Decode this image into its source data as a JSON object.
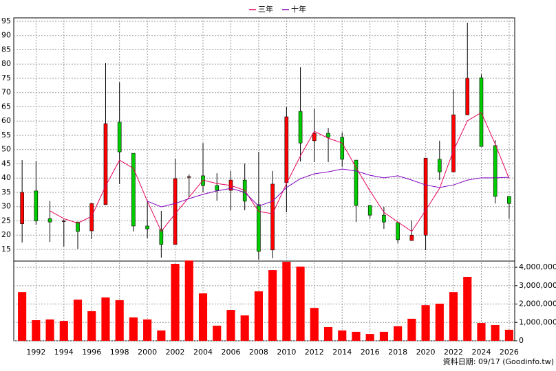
{
  "chart_data": {
    "type": "candlestick",
    "x": [
      1991,
      1992,
      1993,
      1994,
      1995,
      1996,
      1997,
      1998,
      1999,
      2000,
      2001,
      2002,
      2003,
      2004,
      2005,
      2006,
      2007,
      2008,
      2009,
      2010,
      2011,
      2012,
      2013,
      2014,
      2015,
      2016,
      2017,
      2018,
      2019,
      2020,
      2021,
      2022,
      2023,
      2024,
      2025,
      2026
    ],
    "xlim": [
      1990.4,
      2026.4
    ],
    "xticks": [
      1992,
      1994,
      1996,
      1998,
      2000,
      2002,
      2004,
      2006,
      2008,
      2010,
      2012,
      2014,
      2016,
      2018,
      2020,
      2022,
      2024,
      2026
    ],
    "ylim": [
      10.9,
      96.2
    ],
    "yticks": [
      15,
      20,
      25,
      30,
      35,
      40,
      45,
      50,
      55,
      60,
      65,
      70,
      75,
      80,
      85,
      90,
      95
    ],
    "open": [
      24,
      35.5,
      25.8,
      25,
      24.6,
      21.5,
      30.7,
      59.6,
      48.7,
      23.2,
      22,
      16.7,
      40.5,
      40.8,
      37.4,
      35.7,
      39.3,
      30.7,
      14.8,
      38.4,
      63.4,
      53.1,
      55.7,
      54.3,
      46.3,
      30.4,
      27,
      24.4,
      18.1,
      20,
      46.6,
      42.2,
      62.2,
      75.2,
      51.4,
      33.6
    ],
    "high": [
      46.3,
      46,
      32,
      25.5,
      24.6,
      31.1,
      80.3,
      73.6,
      48.7,
      32.1,
      28.5,
      46.8,
      41.3,
      52.3,
      41.7,
      42.5,
      45.1,
      49.2,
      42.5,
      64.9,
      78.9,
      64.4,
      57.6,
      56,
      46.3,
      30.4,
      29.9,
      24.4,
      25.1,
      47,
      53.1,
      71.1,
      94.5,
      76.4,
      53.3,
      33.6
    ],
    "low": [
      17.4,
      23.7,
      17.6,
      16,
      15.2,
      18.6,
      30.7,
      37.9,
      21.3,
      18.9,
      12.1,
      16.7,
      33.3,
      35,
      32.1,
      28.7,
      28.7,
      11.4,
      11.9,
      28,
      45.8,
      45.6,
      45.6,
      44,
      24.6,
      25.8,
      22.2,
      17.2,
      18.1,
      14.8,
      39.3,
      42.2,
      62.2,
      51.1,
      31.1,
      25.8
    ],
    "close": [
      35,
      25,
      24.6,
      25,
      21.3,
      31.1,
      59.1,
      49.2,
      23.2,
      22.2,
      16.7,
      39.8,
      40.5,
      37.4,
      35.7,
      39.3,
      31.9,
      14.3,
      37.9,
      61.5,
      52.3,
      55.7,
      54.3,
      46.6,
      30.4,
      27,
      24.6,
      18.4,
      20,
      47,
      42.2,
      62.2,
      75,
      51.1,
      33.6,
      31.1
    ],
    "up_color": "#ff0000",
    "down_color": "#00cc00",
    "series": [
      {
        "name": "三年",
        "color": "#e8005a",
        "values": [
          null,
          null,
          28.5,
          25.8,
          24.2,
          26.6,
          37.2,
          46.3,
          43.4,
          31.9,
          21.3,
          27.5,
          33.3,
          39.3,
          38.1,
          37.4,
          35.7,
          28.3,
          27.5,
          38.1,
          47.8,
          56.4,
          54,
          52.3,
          43.7,
          35.5,
          28,
          24.6,
          21.3,
          28.7,
          36.4,
          49.7,
          60.1,
          63,
          51.9,
          39.8
        ]
      },
      {
        "name": "十年",
        "color": "#8000c0",
        "values": [
          null,
          null,
          null,
          null,
          null,
          null,
          null,
          null,
          null,
          31.9,
          29.9,
          31.1,
          32.8,
          34.3,
          35.5,
          36.4,
          35,
          30.2,
          31.9,
          36.7,
          39.8,
          41.5,
          42.2,
          43.2,
          42.5,
          41,
          40.1,
          40.8,
          39.3,
          37.6,
          36.7,
          37.6,
          39.3,
          40.1,
          40.1,
          40.3
        ]
      }
    ],
    "volume": {
      "color": "#ff0000",
      "values": [
        2650000,
        1120000,
        1160000,
        1080000,
        2240000,
        1610000,
        2360000,
        2210000,
        1270000,
        1160000,
        560000,
        4190000,
        4370000,
        2580000,
        820000,
        1680000,
        1380000,
        2690000,
        3850000,
        4300000,
        4040000,
        1790000,
        750000,
        560000,
        490000,
        370000,
        490000,
        790000,
        1200000,
        1940000,
        2020000,
        2650000,
        3480000,
        970000,
        860000,
        600000
      ]
    },
    "y2lim": [
      0,
      4340000
    ],
    "y2ticks": [
      {
        "value": 0,
        "label": "0"
      },
      {
        "value": 1000000,
        "label": "1,000,000"
      },
      {
        "value": 2000000,
        "label": "2,000,000"
      },
      {
        "value": 3000000,
        "label": "3,000,000"
      },
      {
        "value": 4000000,
        "label": "4,000,000"
      }
    ],
    "grid": true,
    "legend": "top",
    "footnote": "資料日期: 09/17 (Goodinfo.tw)"
  }
}
